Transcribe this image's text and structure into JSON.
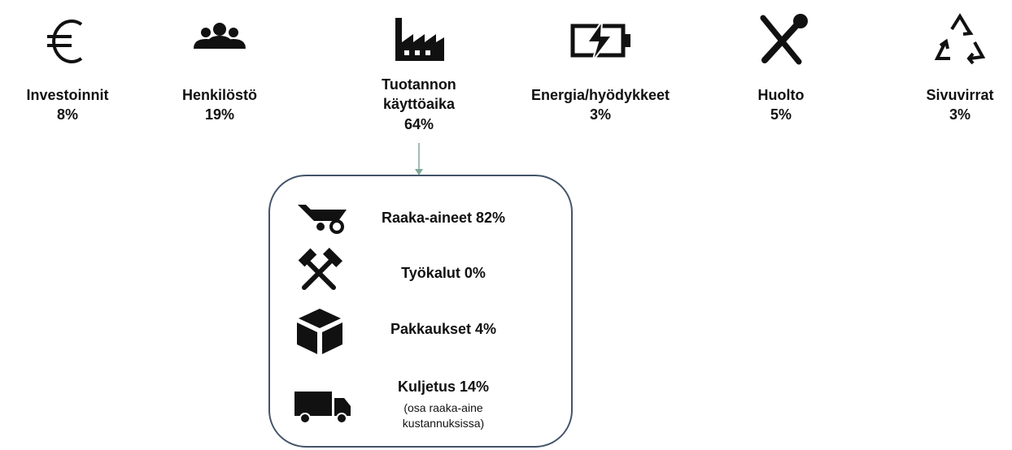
{
  "cost_items": [
    {
      "label": "Investoinnit",
      "share": "8%"
    },
    {
      "label": "Henkilöstö",
      "share": "19%"
    },
    {
      "label": "Tuotannon käyttöaika",
      "share": "64%"
    },
    {
      "label": "Energia/hyödykkeet",
      "share": "3%"
    },
    {
      "label": "Huolto",
      "share": "5%"
    },
    {
      "label": "Sivuvirrat",
      "share": "3%"
    }
  ],
  "production_breakdown": [
    {
      "label": "Raaka-aineet 82%"
    },
    {
      "label": "Työkalut 0%"
    },
    {
      "label": "Pakkaukset 4%"
    },
    {
      "label": "Kuljetus 14%",
      "note": "(osa raaka-aine kustannuksissa)"
    }
  ]
}
